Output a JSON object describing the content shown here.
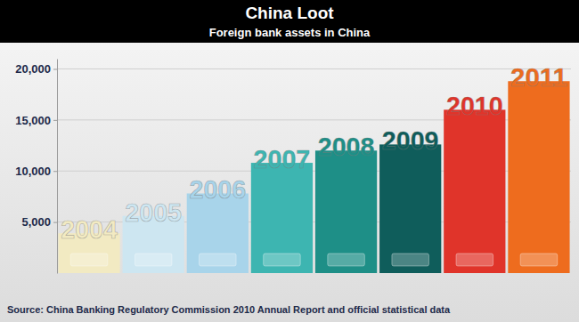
{
  "chart_data": {
    "type": "bar",
    "title": "China Loot",
    "subtitle": "Foreign bank assets in China",
    "categories": [
      "2004",
      "2005",
      "2006",
      "2007",
      "2008",
      "2009",
      "2010",
      "2011"
    ],
    "values": [
      3900,
      5600,
      7800,
      10800,
      12000,
      12600,
      16000,
      18800
    ],
    "colors": [
      "#f2eac2",
      "#cde6f1",
      "#a8d4ea",
      "#3db5b1",
      "#1e8f87",
      "#0f5d5b",
      "#e0342a",
      "#ee6c1e"
    ],
    "ylim": [
      0,
      21000
    ],
    "yticks": [
      {
        "value": 5000,
        "label": "5,000"
      },
      {
        "value": 10000,
        "label": "10,000"
      },
      {
        "value": 15000,
        "label": "15,000"
      },
      {
        "value": 20000,
        "label": "20,000"
      }
    ],
    "grid": true,
    "source": "Source: China Banking Regulatory Commission 2010 Annual Report and official statistical data"
  }
}
